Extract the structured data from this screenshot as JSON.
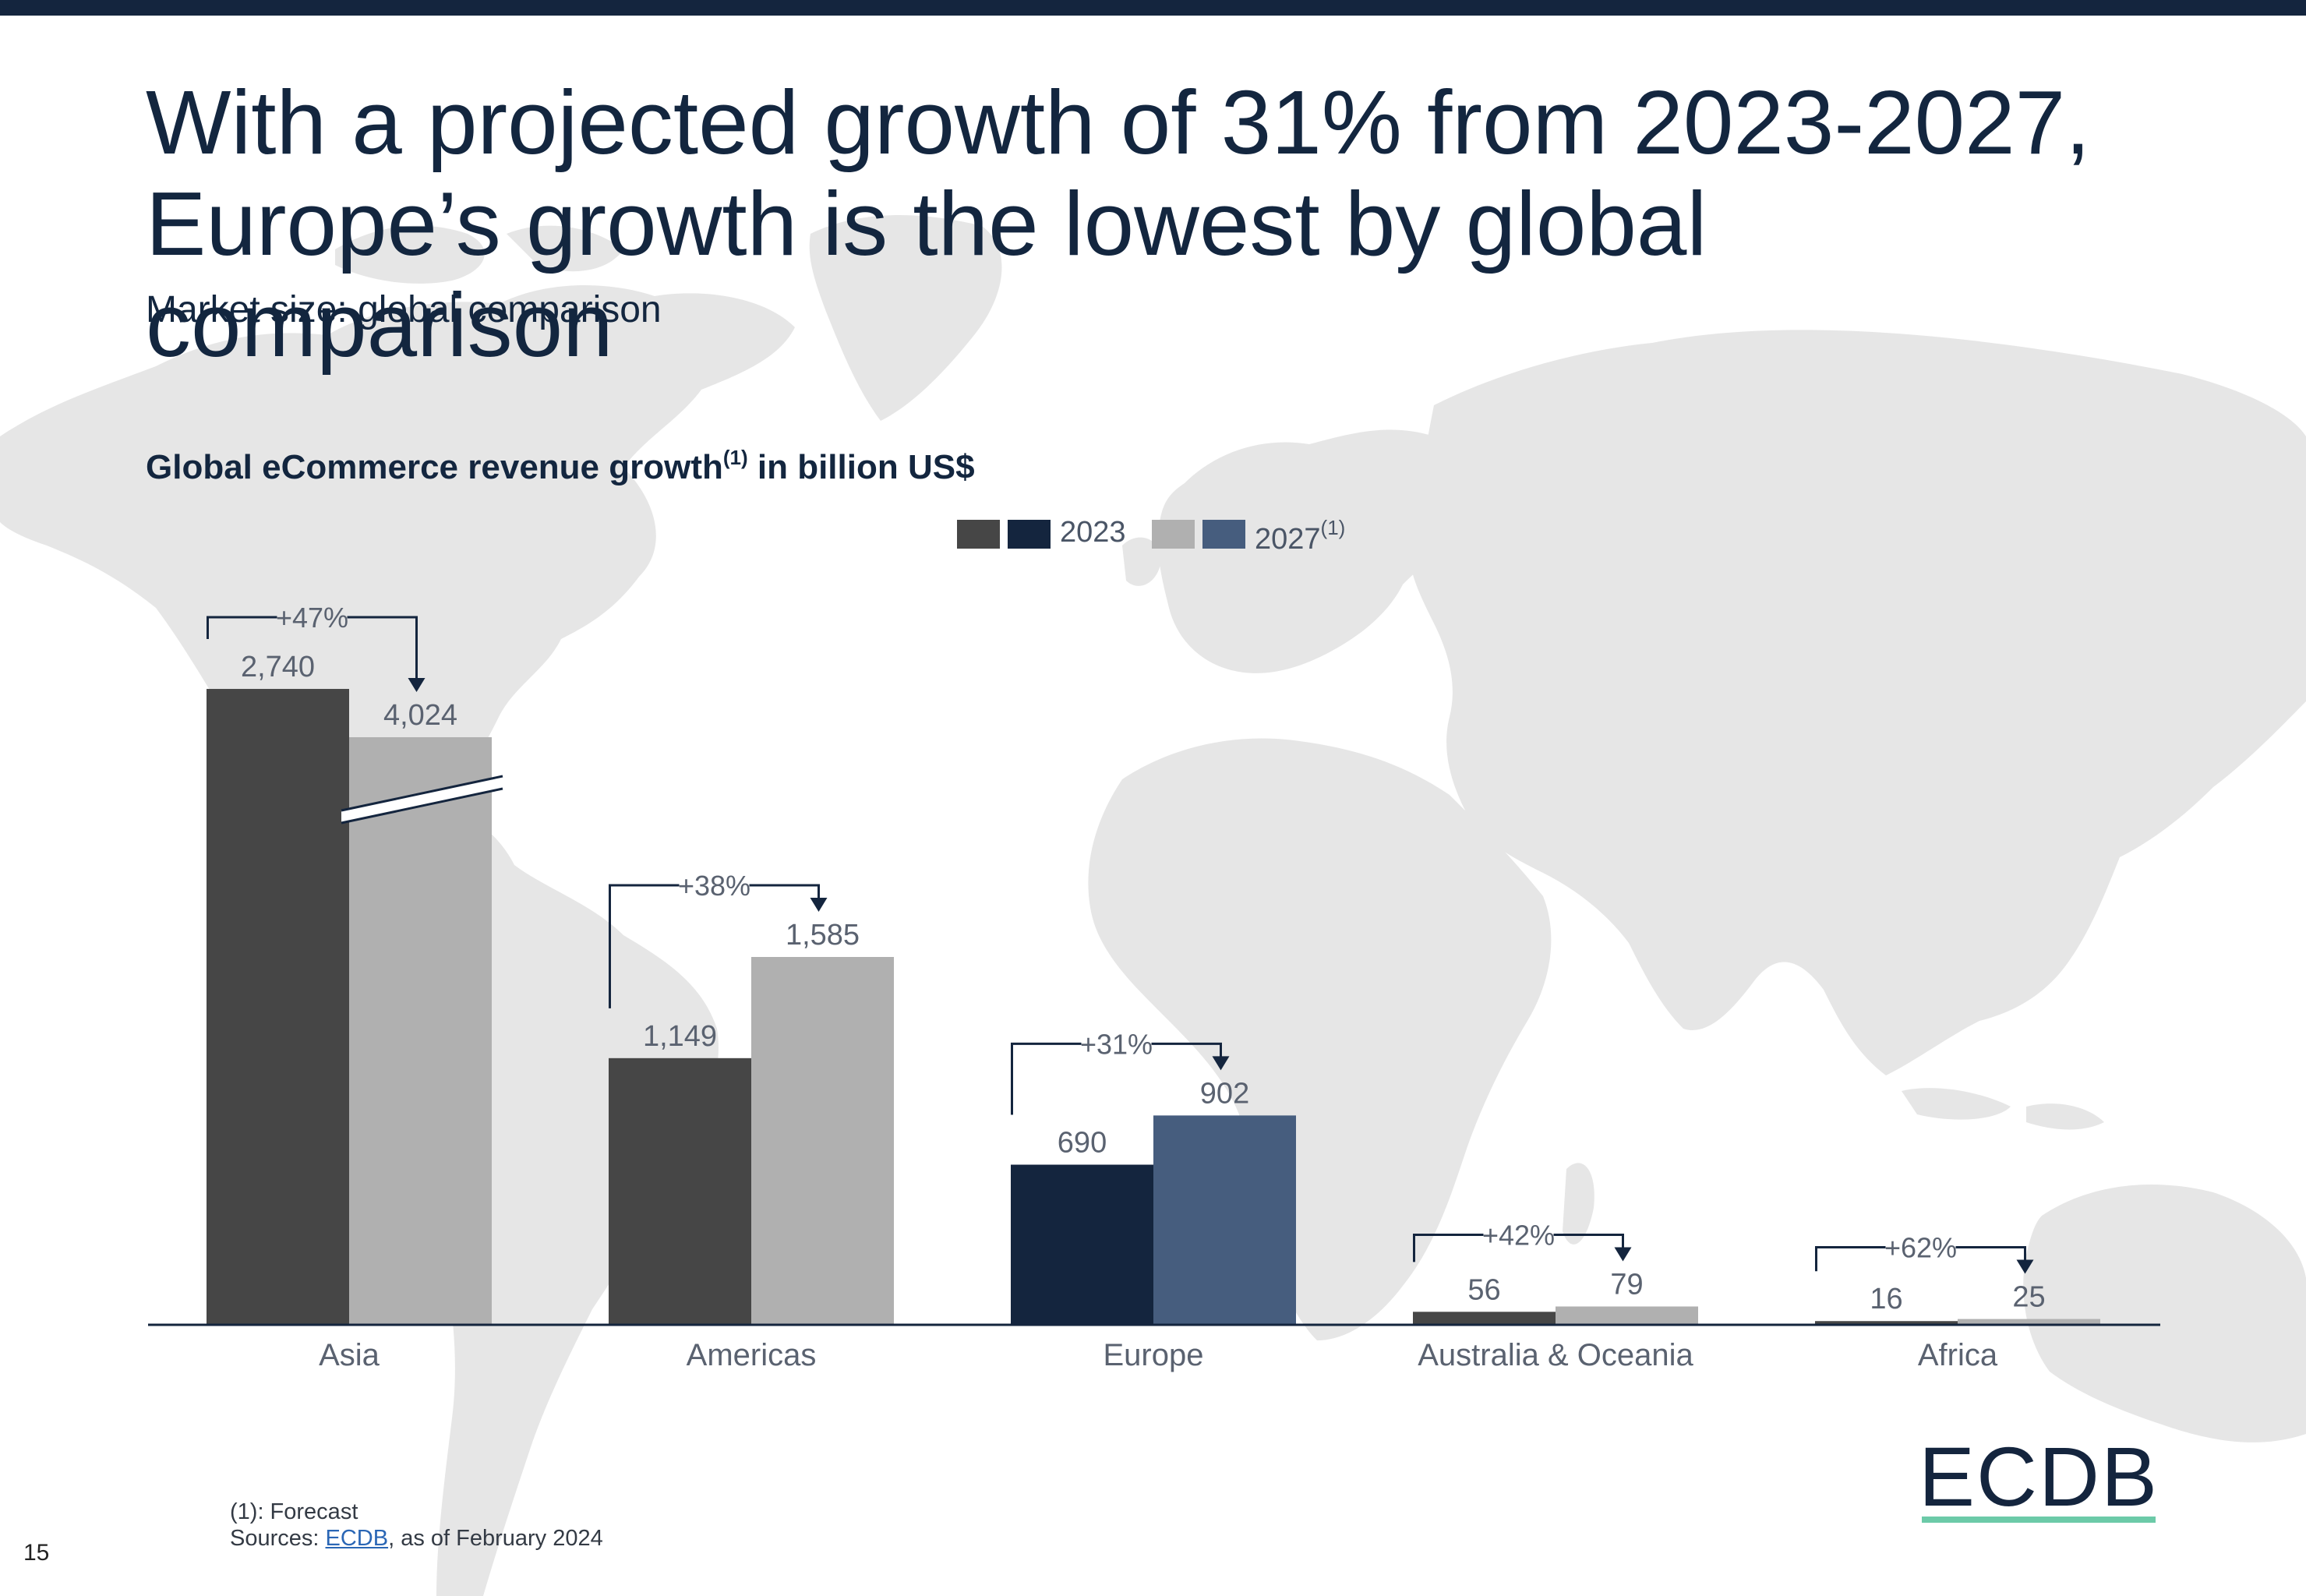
{
  "page": {
    "title": "With a projected growth of 31% from 2023-2027, Europe’s growth is the lowest by global comparison",
    "title_line1": "With a projected growth of 31% from 2023-2027,",
    "title_line2": "Europe’s growth is the lowest by global comparison",
    "subtitle": "Market size: global comparison",
    "chart_title": "Global eCommerce revenue growth",
    "chart_title_sup": "(1)",
    "chart_title_suffix": " in billion US$",
    "footnote": "(1): Forecast",
    "sources_prefix": "Sources: ",
    "sources_link": "ECDB",
    "sources_suffix": ", as of February 2024",
    "page_number": "15",
    "logo_text": "ECDB"
  },
  "legend": {
    "label_2023": "2023",
    "label_2027": "2027",
    "label_2027_sup": "(1)"
  },
  "colors": {
    "navy": "#14253e",
    "dark_gray": "#464646",
    "light_gray": "#b0b0b0",
    "europe_2023": "#14253e",
    "europe_2027": "#465d7e",
    "map": "#e6e6e6",
    "text_gray": "#5a6270",
    "accent_teal": "#6ccaa8"
  },
  "chart_data": {
    "type": "bar",
    "title": "Global eCommerce revenue growth(1) in billion US$",
    "categories": [
      "Asia",
      "Americas",
      "Europe",
      "Australia & Oceania",
      "Africa"
    ],
    "series": [
      {
        "name": "2023",
        "values": [
          2740,
          1149,
          690,
          56,
          16
        ],
        "labels": [
          "2,740",
          "1,149",
          "690",
          "56",
          "16"
        ]
      },
      {
        "name": "2027(1)",
        "values": [
          4024,
          1585,
          902,
          79,
          25
        ],
        "labels": [
          "4,024",
          "1,585",
          "902",
          "79",
          "25"
        ]
      }
    ],
    "growth": [
      "+47%",
      "+38%",
      "+31%",
      "+42%",
      "+62%"
    ],
    "highlight": "Europe",
    "axis_break": {
      "category": "Asia",
      "series": "2027(1)"
    },
    "xlabel": "",
    "ylabel": "billion US$"
  }
}
